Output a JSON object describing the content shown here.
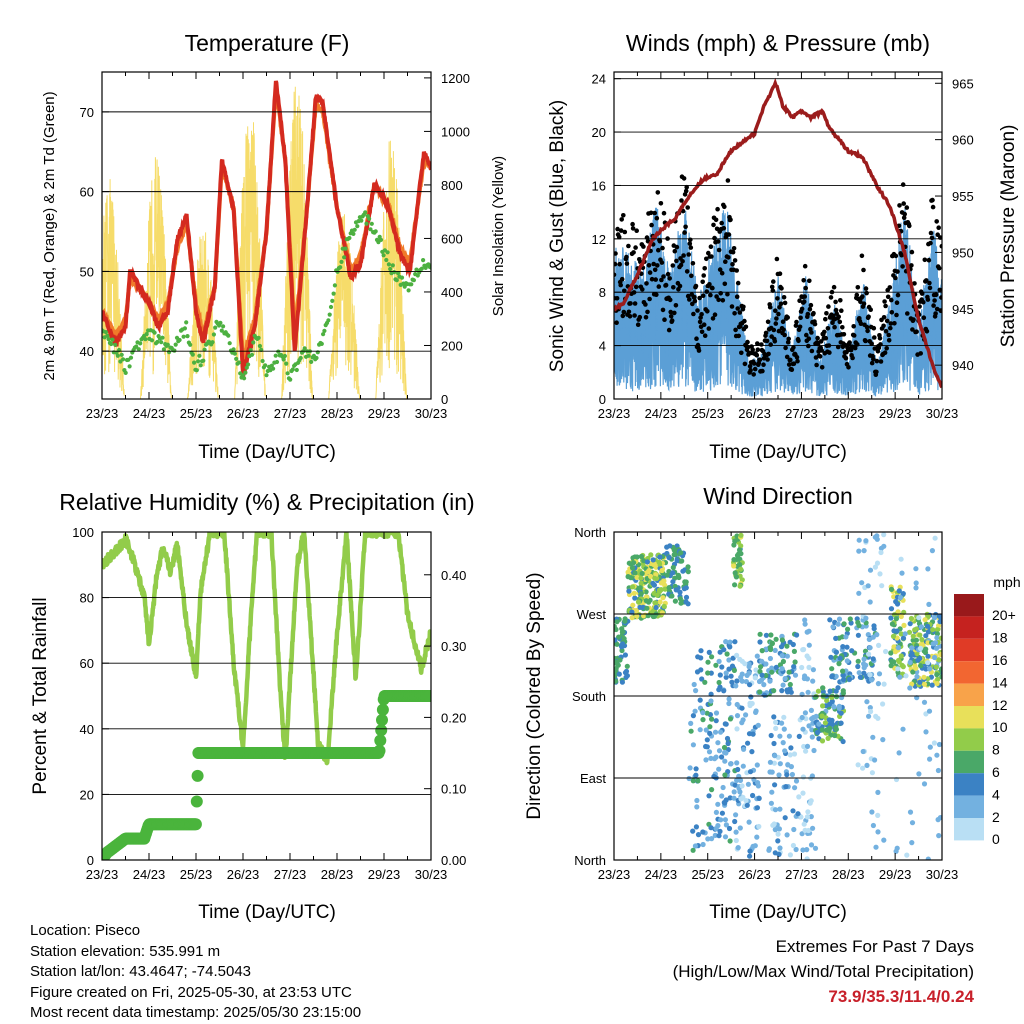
{
  "info": {
    "location": "Location: Piseco",
    "elevation": "Station elevation: 535.991 m",
    "latlon": "Station lat/lon: 43.4647; -74.5043",
    "created": "Figure created on Fri, 2025-05-30, at 23:53 UTC",
    "recent": "Most recent data timestamp: 2025/05/30 23:15:00"
  },
  "extremes": {
    "title": "Extremes For Past 7 Days",
    "subtitle": "(High/Low/Max Wind/Total Precipitation)",
    "values": "73.9/35.3/11.4/0.24",
    "color": "#c8202a"
  },
  "colors": {
    "temp2m": "#d42a1f",
    "temp9m": "#f07a2a",
    "dewpoint": "#4cb040",
    "solar": "#f6dc6a",
    "wind": "#5b9fd6",
    "gust": "#000000",
    "pressure": "#9b1c1c",
    "rh": "#92cc4a",
    "precip": "#4ab43c"
  },
  "chart_data": [
    {
      "type": "line",
      "title": "Temperature (F)",
      "xlabel": "Time (Day/UTC)",
      "ylabel": "2m & 9m T (Red, Orange) & 2m Td (Green)",
      "y2label": "Solar Insolation (Yellow)",
      "x_ticks": [
        "23/23",
        "24/23",
        "25/23",
        "26/23",
        "27/23",
        "28/23",
        "29/23",
        "30/23"
      ],
      "xlim": [
        0,
        7
      ],
      "ylim": [
        34,
        75
      ],
      "yticks": [
        40,
        50,
        60,
        70
      ],
      "y2lim": [
        0,
        1222
      ],
      "y2ticks": [
        0,
        200,
        400,
        600,
        800,
        1000,
        1200
      ],
      "grid": "horizontal",
      "series": [
        {
          "name": "2m T",
          "axis": "left",
          "x": [
            0,
            0.2,
            0.3,
            0.5,
            0.6,
            0.8,
            1.0,
            1.2,
            1.4,
            1.6,
            1.8,
            2.0,
            2.15,
            2.4,
            2.55,
            2.8,
            3.0,
            3.25,
            3.5,
            3.7,
            3.9,
            4.1,
            4.35,
            4.55,
            4.7,
            5.0,
            5.3,
            5.5,
            5.8,
            6.1,
            6.35,
            6.55,
            6.85,
            7.0
          ],
          "y": [
            45,
            42,
            41,
            43,
            50,
            48,
            46,
            43,
            45,
            54,
            57,
            45,
            41,
            48,
            64,
            58,
            37,
            43,
            55,
            74,
            64,
            40,
            57,
            72,
            71,
            58,
            49,
            51,
            61,
            58,
            52,
            50,
            65,
            63
          ]
        },
        {
          "name": "9m T",
          "axis": "left",
          "x": [
            0,
            0.2,
            0.3,
            0.5,
            0.6,
            0.8,
            1.0,
            1.2,
            1.4,
            1.6,
            1.8,
            2.0,
            2.15,
            2.4,
            2.55,
            2.8,
            3.0,
            3.25,
            3.5,
            3.7,
            3.9,
            4.1,
            4.35,
            4.55,
            4.7,
            5.0,
            5.3,
            5.5,
            5.8,
            6.1,
            6.35,
            6.55,
            6.85,
            7.0
          ],
          "y": [
            45,
            43,
            42,
            44,
            49,
            48,
            46,
            44,
            46,
            53,
            56,
            46,
            42,
            48,
            63,
            58,
            39,
            44,
            55,
            73,
            64,
            42,
            57,
            71,
            70,
            58,
            50,
            52,
            61,
            58,
            53,
            51,
            64,
            63
          ]
        },
        {
          "name": "2m Td",
          "axis": "left",
          "x": [
            0,
            0.3,
            0.5,
            0.8,
            1.0,
            1.3,
            1.5,
            1.8,
            2.0,
            2.3,
            2.5,
            2.8,
            3.0,
            3.3,
            3.5,
            3.8,
            4.0,
            4.3,
            4.5,
            4.8,
            5.0,
            5.3,
            5.6,
            5.9,
            6.2,
            6.5,
            6.8,
            7.0
          ],
          "y": [
            43,
            40,
            38,
            41,
            42,
            41,
            40,
            43,
            38,
            41,
            44,
            40,
            37,
            42,
            37,
            40,
            37,
            40,
            39,
            43,
            50,
            55,
            57,
            54,
            50,
            48,
            51,
            51
          ]
        },
        {
          "name": "Solar",
          "axis": "right",
          "day_peaks": [
            0.15,
            1.15,
            2.15,
            3.15,
            4.15,
            5.15,
            6.15
          ],
          "peak_values": [
            830,
            920,
            650,
            1120,
            1200,
            700,
            1000
          ]
        }
      ]
    },
    {
      "type": "scatter",
      "title": "Winds (mph) & Pressure (mb)",
      "xlabel": "Time (Day/UTC)",
      "ylabel": "Sonic Wind & Gust (Blue, Black)",
      "y2label": "Station Pressure (Maroon)",
      "x_ticks": [
        "23/23",
        "24/23",
        "25/23",
        "26/23",
        "27/23",
        "28/23",
        "29/23",
        "30/23"
      ],
      "xlim": [
        0,
        7
      ],
      "ylim": [
        0,
        24.5
      ],
      "yticks": [
        0,
        4,
        8,
        12,
        16,
        20,
        24
      ],
      "y2lim": [
        937,
        966
      ],
      "y2ticks": [
        940,
        945,
        950,
        955,
        960,
        965
      ],
      "grid": "horizontal",
      "series": [
        {
          "name": "Pressure",
          "axis": "right",
          "x": [
            0,
            0.2,
            0.5,
            0.8,
            1.0,
            1.3,
            1.6,
            1.9,
            2.2,
            2.5,
            2.8,
            3.0,
            3.2,
            3.45,
            3.6,
            3.8,
            4.0,
            4.2,
            4.45,
            4.6,
            4.8,
            5.0,
            5.3,
            5.6,
            5.9,
            6.2,
            6.5,
            6.8,
            7.0
          ],
          "y": [
            945,
            945.5,
            948,
            951,
            952,
            953,
            955,
            956.5,
            957,
            959,
            960,
            960.5,
            963,
            965,
            963,
            962,
            962.5,
            962,
            962.5,
            961,
            960,
            959,
            958.5,
            956,
            954,
            950,
            944,
            940,
            938
          ]
        }
      ]
    },
    {
      "type": "line",
      "title": "Relative Humidity (%) & Precipitation (in)",
      "xlabel": "Time (Day/UTC)",
      "ylabel": "Percent & Total Rainfall",
      "x_ticks": [
        "23/23",
        "24/23",
        "25/23",
        "26/23",
        "27/23",
        "28/23",
        "29/23",
        "30/23"
      ],
      "xlim": [
        0,
        7
      ],
      "ylim": [
        0,
        100
      ],
      "yticks": [
        0,
        20,
        40,
        60,
        80,
        100
      ],
      "y2lim": [
        0,
        0.46
      ],
      "y2ticks": [
        "0.00",
        "0.10",
        "0.20",
        "0.30",
        "0.40"
      ],
      "grid": "horizontal",
      "series": [
        {
          "name": "RH",
          "axis": "left",
          "x": [
            0,
            0.4,
            0.5,
            0.7,
            0.9,
            1.0,
            1.15,
            1.3,
            1.45,
            1.6,
            1.8,
            1.9,
            2.0,
            2.1,
            2.3,
            2.6,
            2.8,
            3.0,
            3.15,
            3.3,
            3.6,
            3.8,
            3.9,
            4.15,
            4.3,
            4.6,
            4.8,
            4.95,
            5.2,
            5.4,
            5.6,
            6.0,
            6.3,
            6.5,
            6.8,
            7.0
          ],
          "y": [
            90,
            96,
            98,
            90,
            80,
            66,
            85,
            96,
            88,
            96,
            72,
            64,
            56,
            82,
            100,
            100,
            60,
            34,
            70,
            100,
            100,
            50,
            30,
            90,
            100,
            35,
            30,
            60,
            100,
            55,
            100,
            100,
            100,
            75,
            58,
            70
          ]
        },
        {
          "name": "Precip",
          "axis": "right",
          "x": [
            0,
            0.1,
            0.3,
            0.5,
            0.9,
            1.0,
            1.6,
            2.0,
            2.05,
            3.0,
            3.6,
            4.5,
            5.0,
            5.9,
            6.0,
            7.0
          ],
          "y": [
            0,
            0.01,
            0.02,
            0.03,
            0.03,
            0.05,
            0.05,
            0.05,
            0.15,
            0.15,
            0.15,
            0.15,
            0.15,
            0.15,
            0.23,
            0.23
          ]
        }
      ]
    },
    {
      "type": "scatter",
      "title": "Wind Direction",
      "xlabel": "Time (Day/UTC)",
      "ylabel": "Direction (Colored By Speed)",
      "x_ticks": [
        "23/23",
        "24/23",
        "25/23",
        "26/23",
        "27/23",
        "28/23",
        "29/23",
        "30/23"
      ],
      "xlim": [
        0,
        7
      ],
      "ylim": [
        0,
        360
      ],
      "yticks": [
        "North",
        "East",
        "South",
        "West",
        "North"
      ],
      "grid": "horizontal",
      "colorbar": {
        "title": "mph",
        "labels": [
          "20+",
          "18",
          "16",
          "14",
          "12",
          "10",
          "8",
          "6",
          "4",
          "2",
          "0"
        ],
        "colors": [
          "#99191b",
          "#c5221f",
          "#e03b26",
          "#f26631",
          "#f8a34a",
          "#e8e05a",
          "#92cc4a",
          "#4aa868",
          "#3b82c4",
          "#73b1e0",
          "#b9dff4"
        ]
      }
    }
  ]
}
